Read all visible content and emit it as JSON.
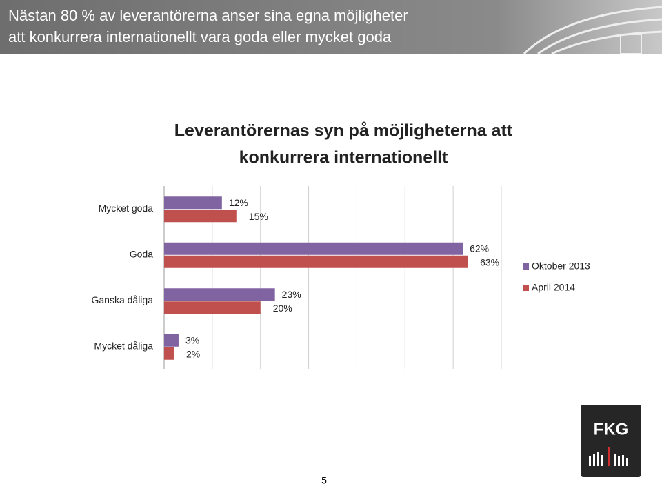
{
  "header": {
    "title_lines": [
      "Nästan 80 % av leverantörerna anser sina egna möjligheter",
      "att konkurrera internationellt vara goda eller mycket goda"
    ]
  },
  "chart_data": {
    "type": "hbar",
    "title_lines": [
      "Leverantörernas syn på möjligheterna att",
      "konkurrera internationellt"
    ],
    "categories": [
      "Mycket goda",
      "Goda",
      "Ganska dåliga",
      "Mycket dåliga"
    ],
    "series": [
      {
        "name": "Oktober 2013",
        "color": "#8064a2",
        "values": [
          12,
          62,
          23,
          3
        ],
        "value_labels": [
          "12%",
          "62%",
          "23%",
          "3%"
        ]
      },
      {
        "name": "April 2014",
        "color": "#c0504d",
        "values": [
          15,
          63,
          20,
          2
        ],
        "value_labels": [
          "15%",
          "63%",
          "20%",
          "2%"
        ]
      }
    ],
    "xlim": [
      0,
      70
    ],
    "xticks": [
      0,
      10,
      20,
      30,
      40,
      50,
      60,
      70
    ],
    "grid": true,
    "legend": "right"
  },
  "footer": {
    "page_number": "5",
    "logo": "FKG"
  }
}
